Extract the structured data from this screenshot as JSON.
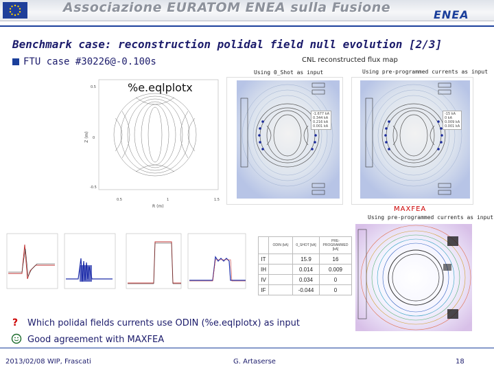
{
  "header": {
    "banner_title": "Associazione EURATOM ENEA sulla Fusione",
    "logo_text": "ENEA"
  },
  "slide": {
    "title": "Benchmark case: reconstruction polidal field null evolution [2/3]",
    "case_bullet": "FTU case #30226@-0.100s",
    "cnl_caption": "CNL reconstructed flux map",
    "caption_shot": "Using 0_Shot as input",
    "caption_preprog_top": "Using pre-programmed currents as input",
    "eqlplotx_label": "%e.eqlplotx",
    "maxfea_label": "MAXFEA",
    "caption_preprog_bottom": "Using pre-programmed currents as input",
    "question_text": "Which polidal fields currents use ODIN (%e.eqlplotx) as input",
    "agreement_text": "Good agreement with MAXFEA"
  },
  "left_plot": {
    "ylabel": "Z (m)",
    "xlabel": "R (m)",
    "y_ticks": [
      "0.5",
      "0",
      "-0.5"
    ],
    "x_ticks": [
      "0.5",
      "1",
      "1.5"
    ]
  },
  "flux_legend_1": [
    "-1.677 kA",
    "0.344 kA",
    "0.216 kA",
    "0.001 kA"
  ],
  "flux_legend_2": [
    "-15 kA",
    "0 kA",
    "0.009 kA",
    "0.001 kA"
  ],
  "currents_table": {
    "headers": [
      "",
      "ODIN\n(kA)",
      "0_SHOT\n[kA]",
      "PRE-PROGRAMMED\n[kA]"
    ],
    "rows": [
      [
        "IT",
        "",
        "15.9",
        "16"
      ],
      [
        "IH",
        "",
        "0.014",
        "0.009"
      ],
      [
        "IV",
        "",
        "0.034",
        "0"
      ],
      [
        "IF",
        "",
        "-0.044",
        "0"
      ]
    ]
  },
  "footer": {
    "date_place": "2013/02/08   WIP, Frascati",
    "author": "G. Artaserse",
    "page": "18"
  }
}
